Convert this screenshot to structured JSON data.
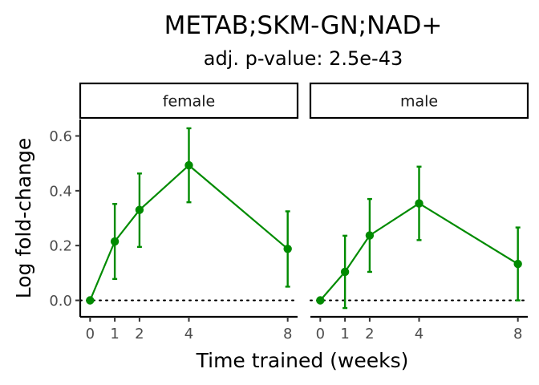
{
  "chart_data": {
    "type": "line",
    "title": "METAB;SKM-GN;NAD+",
    "subtitle": "adj. p-value: 2.5e-43",
    "xlabel": "Time trained (weeks)",
    "ylabel": "Log fold-change",
    "x_ticks": [
      0,
      1,
      2,
      4,
      8
    ],
    "y_ticks": [
      0.0,
      0.2,
      0.4,
      0.6
    ],
    "y_tick_labels": [
      "0.0",
      "0.2",
      "0.4",
      "0.6"
    ],
    "xlim": [
      -0.4,
      8.4
    ],
    "ylim": [
      -0.06,
      0.66
    ],
    "line_color": "#008B00",
    "reference_line": 0,
    "grid": false,
    "panels": [
      {
        "name": "female",
        "x": [
          0,
          1,
          2,
          4,
          8
        ],
        "y": [
          0.0,
          0.215,
          0.33,
          0.493,
          0.188
        ],
        "err_low": [
          0.0,
          0.078,
          0.195,
          0.358,
          0.05
        ],
        "err_high": [
          0.0,
          0.352,
          0.463,
          0.628,
          0.325
        ]
      },
      {
        "name": "male",
        "x": [
          0,
          1,
          2,
          4,
          8
        ],
        "y": [
          0.0,
          0.104,
          0.237,
          0.354,
          0.133
        ],
        "err_low": [
          0.0,
          -0.028,
          0.104,
          0.22,
          0.0
        ],
        "err_high": [
          0.0,
          0.236,
          0.37,
          0.488,
          0.266
        ]
      }
    ]
  }
}
